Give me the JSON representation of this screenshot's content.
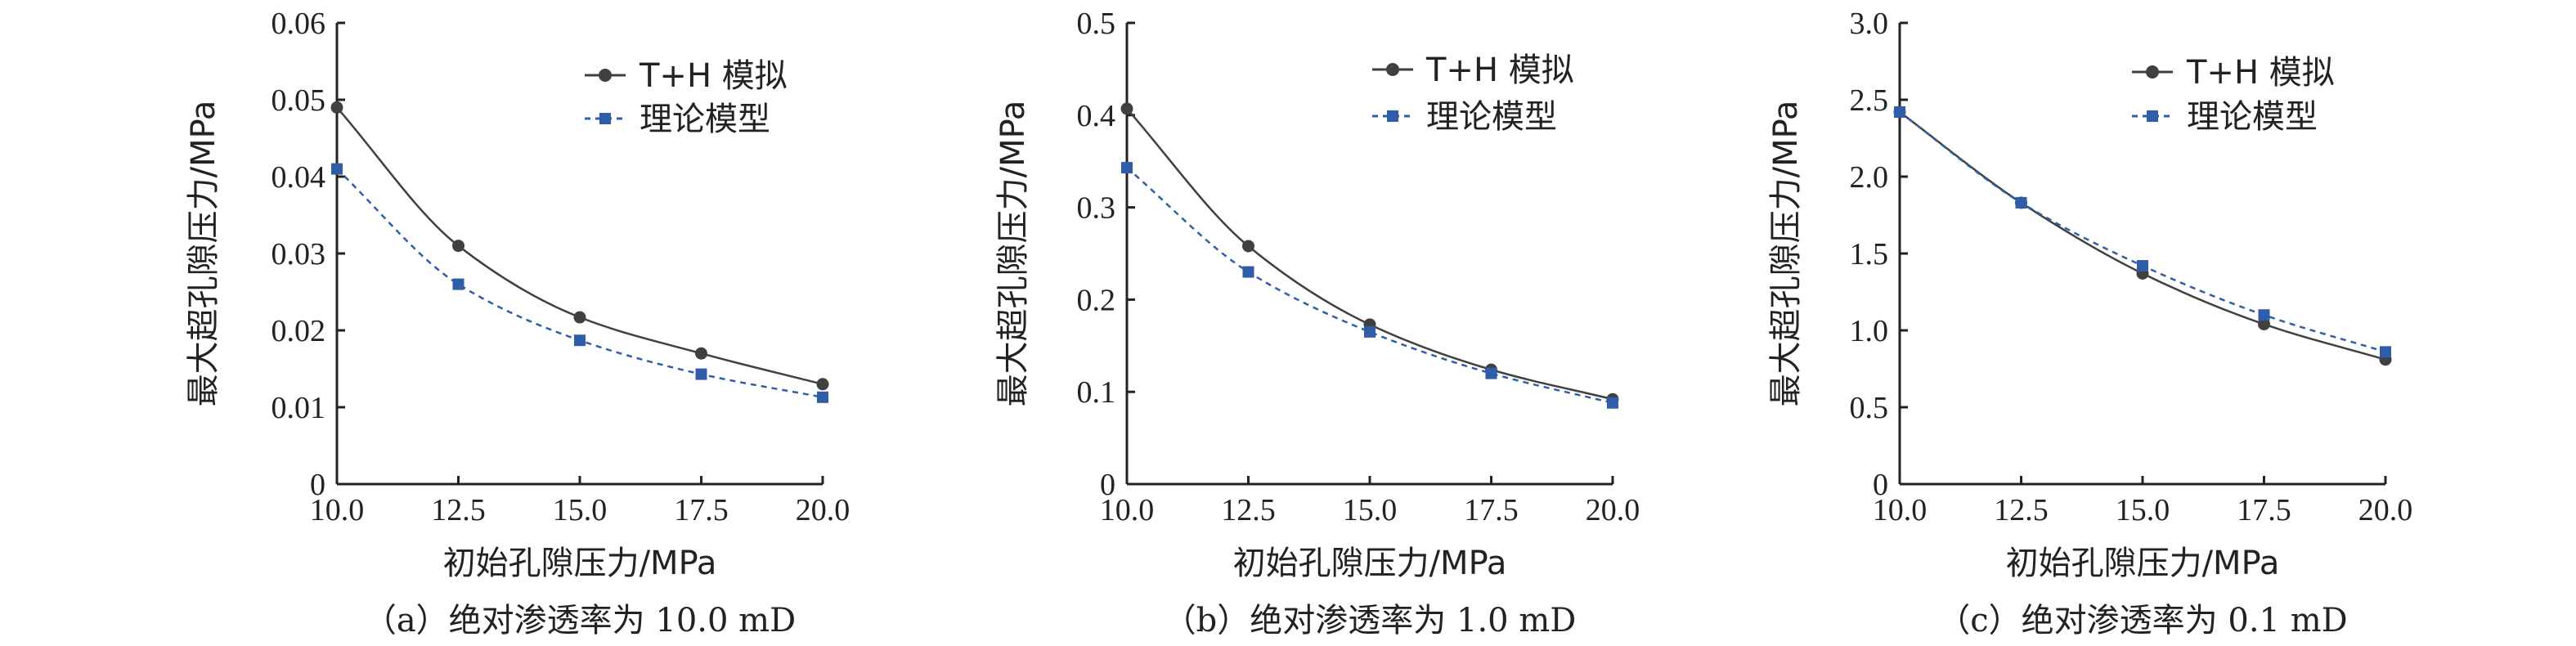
{
  "chart_data": [
    {
      "type": "line",
      "caption": "（a）绝对渗透率为 10.0 mD",
      "xlabel": "初始孔隙压力/MPa",
      "ylabel": "最大超孔隙压力/MPa",
      "xlim": [
        10,
        20
      ],
      "ylim": [
        0,
        0.06
      ],
      "xticks": [
        10,
        12.5,
        15,
        17.5,
        20
      ],
      "xtick_labels": [
        "10.0",
        "12.5",
        "15.0",
        "17.5",
        "20.0"
      ],
      "yticks": [
        0,
        0.01,
        0.02,
        0.03,
        0.04,
        0.05,
        0.06
      ],
      "ytick_labels": [
        "0",
        "0.01",
        "0.02",
        "0.03",
        "0.04",
        "0.05",
        "0.06"
      ],
      "x": [
        10,
        12.5,
        15,
        17.5,
        20
      ],
      "series": [
        {
          "name": "T+H 模拟",
          "values": [
            0.049,
            0.031,
            0.0217,
            0.017,
            0.013
          ],
          "color": "#404040",
          "marker": "circle",
          "dash": false
        },
        {
          "name": "理论模型",
          "values": [
            0.041,
            0.026,
            0.0187,
            0.0143,
            0.0113
          ],
          "color": "#2f5da8",
          "marker": "square",
          "dash": true
        }
      ]
    },
    {
      "type": "line",
      "caption": "（b）绝对渗透率为 1.0 mD",
      "xlabel": "初始孔隙压力/MPa",
      "ylabel": "最大超孔隙压力/MPa",
      "xlim": [
        10,
        20
      ],
      "ylim": [
        0,
        0.5
      ],
      "xticks": [
        10,
        12.5,
        15,
        17.5,
        20
      ],
      "xtick_labels": [
        "10.0",
        "12.5",
        "15.0",
        "17.5",
        "20.0"
      ],
      "yticks": [
        0,
        0.1,
        0.2,
        0.3,
        0.4,
        0.5
      ],
      "ytick_labels": [
        "0",
        "0.1",
        "0.2",
        "0.3",
        "0.4",
        "0.5"
      ],
      "x": [
        10,
        12.5,
        15,
        17.5,
        20
      ],
      "series": [
        {
          "name": "T+H 模拟",
          "values": [
            0.407,
            0.258,
            0.173,
            0.124,
            0.092
          ],
          "color": "#404040",
          "marker": "circle",
          "dash": false
        },
        {
          "name": "理论模型",
          "values": [
            0.343,
            0.23,
            0.165,
            0.12,
            0.088
          ],
          "color": "#2f5da8",
          "marker": "square",
          "dash": true
        }
      ]
    },
    {
      "type": "line",
      "caption": "（c）绝对渗透率为 0.1 mD",
      "xlabel": "初始孔隙压力/MPa",
      "ylabel": "最大超孔隙压力/MPa",
      "xlim": [
        10,
        20
      ],
      "ylim": [
        0,
        3.0
      ],
      "xticks": [
        10,
        12.5,
        15,
        17.5,
        20
      ],
      "xtick_labels": [
        "10.0",
        "12.5",
        "15.0",
        "17.5",
        "20.0"
      ],
      "yticks": [
        0,
        0.5,
        1.0,
        1.5,
        2.0,
        2.5,
        3.0
      ],
      "ytick_labels": [
        "0",
        "0.5",
        "1.0",
        "1.5",
        "2.0",
        "2.5",
        "3.0"
      ],
      "x": [
        10,
        12.5,
        15,
        17.5,
        20
      ],
      "series": [
        {
          "name": "T+H 模拟",
          "values": [
            2.42,
            1.83,
            1.37,
            1.04,
            0.81
          ],
          "color": "#404040",
          "marker": "circle",
          "dash": false
        },
        {
          "name": "理论模型",
          "values": [
            2.42,
            1.83,
            1.42,
            1.1,
            0.86
          ],
          "color": "#2f5da8",
          "marker": "square",
          "dash": true
        }
      ]
    }
  ]
}
